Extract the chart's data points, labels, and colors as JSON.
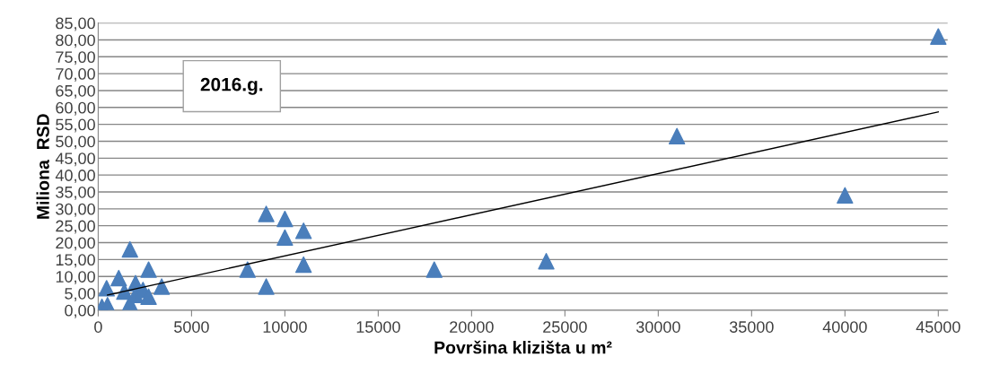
{
  "chart_data": {
    "type": "scatter",
    "xlabel": "Površina klizišta u m²",
    "ylabel": "Miliona  RSD",
    "annotations": [
      "2016.g."
    ],
    "series": [
      {
        "color": "#4a7ebb",
        "marker": "triangle",
        "x": [
          200,
          500,
          450,
          1100,
          1400,
          1700,
          1700,
          2000,
          2000,
          2400,
          2700,
          2700,
          3400,
          8000,
          9000,
          9000,
          10000,
          10000,
          11000,
          11000,
          18000,
          24000,
          31000,
          40000,
          45000
        ],
        "values": [
          1,
          1.5,
          6.5,
          9.5,
          5.5,
          18,
          2,
          8,
          4.5,
          6,
          12,
          4,
          7,
          12,
          28.5,
          7,
          27,
          21.5,
          23.5,
          13.5,
          12,
          14.5,
          51.5,
          34,
          81
        ]
      },
      {
        "type": "line",
        "color": "#000000",
        "marker": "none",
        "x": [
          500,
          45000
        ],
        "values": [
          4.5,
          58.7
        ]
      }
    ],
    "xlim": [
      0,
      45500
    ],
    "xticks": [
      0,
      5000,
      10000,
      15000,
      20000,
      25000,
      30000,
      35000,
      40000,
      45000
    ],
    "ylim": [
      0,
      85
    ],
    "yticks": [
      {
        "value": 0,
        "label": "0,00"
      },
      {
        "value": 5,
        "label": "5,00"
      },
      {
        "value": 10,
        "label": "10,00"
      },
      {
        "value": 15,
        "label": "15,00"
      },
      {
        "value": 20,
        "label": "20,00"
      },
      {
        "value": 25,
        "label": "25,00"
      },
      {
        "value": 30,
        "label": "30,00"
      },
      {
        "value": 35,
        "label": "35,00"
      },
      {
        "value": 40,
        "label": "40,00"
      },
      {
        "value": 45,
        "label": "45,00"
      },
      {
        "value": 50,
        "label": "50,00"
      },
      {
        "value": 55,
        "label": "55,00"
      },
      {
        "value": 60,
        "label": "60,00"
      },
      {
        "value": 65,
        "label": "65,00"
      },
      {
        "value": 70,
        "label": "70,00"
      },
      {
        "value": 75,
        "label": "75,00"
      },
      {
        "value": 80,
        "label": "80,00"
      },
      {
        "value": 85,
        "label": "85,00"
      }
    ],
    "grid": "y",
    "legend": false
  }
}
